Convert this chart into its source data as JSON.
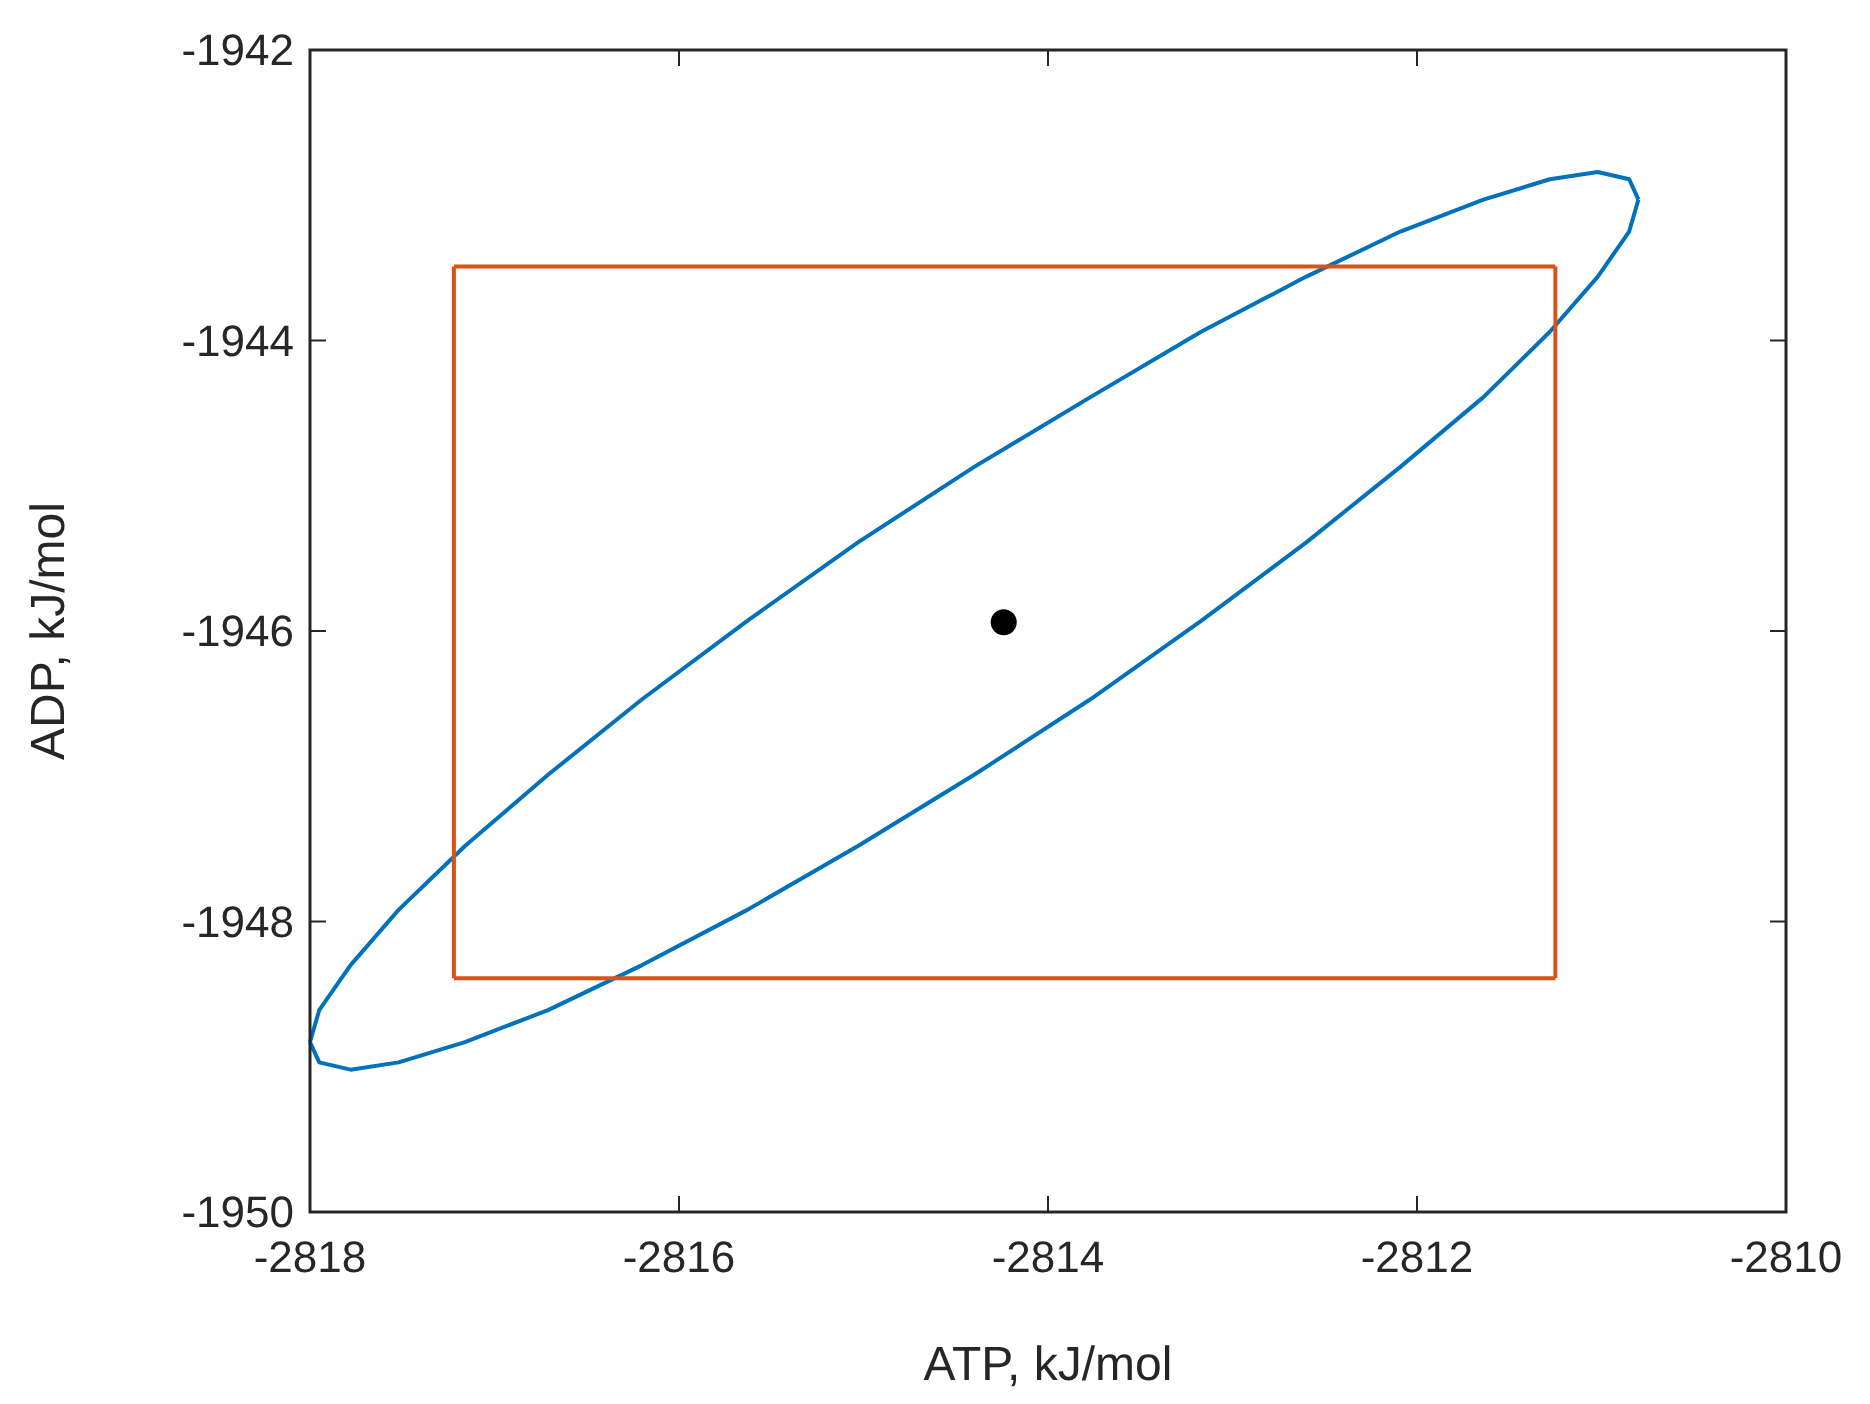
{
  "chart_data": {
    "type": "line",
    "xlabel": "ATP, kJ/mol",
    "ylabel": "ADP, kJ/mol",
    "xlim": [
      -2818,
      -2810
    ],
    "ylim": [
      -1950,
      -1942
    ],
    "xticks": [
      -2818,
      -2816,
      -2814,
      -2812,
      -2810
    ],
    "yticks": [
      -1950,
      -1948,
      -1946,
      -1944,
      -1942
    ],
    "grid": false,
    "series": [
      {
        "color": "#0072bd",
        "x": [
          -2818.0,
          -2817.95,
          -2817.78,
          -2817.52,
          -2817.16,
          -2816.71,
          -2816.2,
          -2815.63,
          -2815.03,
          -2814.4,
          -2813.77,
          -2813.17,
          -2812.6,
          -2812.09,
          -2811.64,
          -2811.28,
          -2811.02,
          -2810.85,
          -2810.8
        ],
        "values": [
          -1948.83,
          -1948.97,
          -1949.02,
          -1948.97,
          -1948.83,
          -1948.61,
          -1948.3,
          -1947.92,
          -1947.48,
          -1946.99,
          -1946.47,
          -1945.93,
          -1945.39,
          -1944.87,
          -1944.39,
          -1943.94,
          -1943.56,
          -1943.25,
          -1943.03
        ]
      },
      {
        "color": "#0072bd",
        "x": [
          -2818.0,
          -2817.95,
          -2817.78,
          -2817.52,
          -2817.16,
          -2816.71,
          -2816.2,
          -2815.63,
          -2815.03,
          -2814.4,
          -2813.77,
          -2813.17,
          -2812.6,
          -2812.09,
          -2811.64,
          -2811.28,
          -2811.02,
          -2810.85,
          -2810.8
        ],
        "values": [
          -1948.83,
          -1948.61,
          -1948.3,
          -1947.92,
          -1947.48,
          -1946.99,
          -1946.47,
          -1945.93,
          -1945.39,
          -1944.87,
          -1944.39,
          -1943.94,
          -1943.56,
          -1943.25,
          -1943.03,
          -1942.89,
          -1942.84,
          -1942.89,
          -1943.03
        ]
      },
      {
        "color": "#d95319",
        "x": [
          -2817.22,
          -2811.25
        ],
        "values": [
          -1943.49,
          -1943.49
        ]
      },
      {
        "color": "#d95319",
        "x": [
          -2817.22,
          -2811.25
        ],
        "values": [
          -1948.39,
          -1948.39
        ]
      },
      {
        "color": "#d95319",
        "x": [
          -2817.22,
          -2817.22
        ],
        "values": [
          -1948.39,
          -1943.49
        ]
      },
      {
        "color": "#d95319",
        "x": [
          -2811.25,
          -2811.25
        ],
        "values": [
          -1948.39,
          -1943.49
        ]
      },
      {
        "type": "scatter",
        "color": "#000000",
        "marker": "circle",
        "x": [
          -2814.24
        ],
        "values": [
          -1945.94
        ]
      }
    ]
  }
}
